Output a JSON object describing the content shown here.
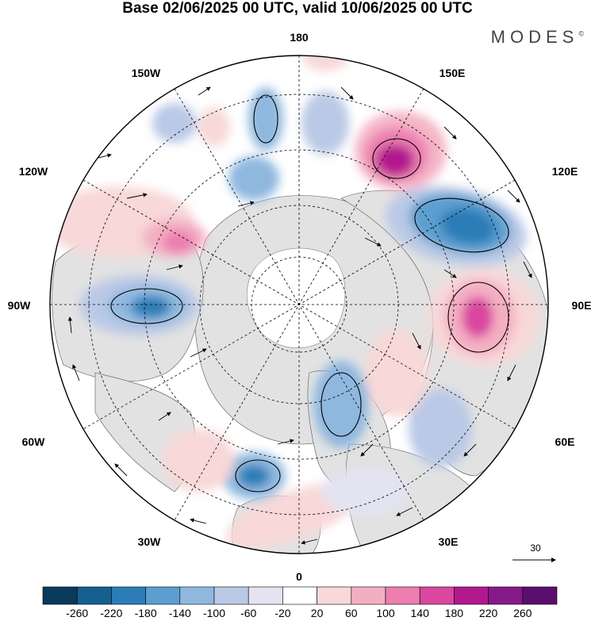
{
  "header": {
    "title": "Base 02/06/2025 00 UTC, valid 10/06/2025 00 UTC",
    "brand": "MODES",
    "brand_mark": "©"
  },
  "map": {
    "projection": "north-polar-stereographic",
    "longitude_labels": {
      "top": "180",
      "bottom": "0",
      "left": "90W",
      "right": "90E",
      "top_left": "150W",
      "top_right": "150E",
      "upper_left": "120W",
      "upper_right": "120E",
      "lower_left": "60W",
      "lower_right": "60E",
      "bottom_left": "30W",
      "bottom_right": "30E"
    },
    "vector_reference_label": "30",
    "anomaly_centers": [
      {
        "sign": "positive",
        "region": "150E-120E",
        "strength": 220
      },
      {
        "sign": "negative",
        "region": "120E-90E",
        "strength": -180
      },
      {
        "sign": "positive",
        "region": "90E",
        "strength": 180
      },
      {
        "sign": "negative",
        "region": "90W",
        "strength": -180
      },
      {
        "sign": "positive",
        "region": "120W",
        "strength": 100
      },
      {
        "sign": "negative",
        "region": "30W",
        "strength": -140
      },
      {
        "sign": "negative",
        "region": "60E-30E",
        "strength": -100
      },
      {
        "sign": "negative",
        "region": "150W",
        "strength": -100
      }
    ]
  },
  "colorbar": {
    "ticks": [
      "-260",
      "-220",
      "-180",
      "-140",
      "-100",
      "-60",
      "-20",
      "20",
      "60",
      "100",
      "140",
      "180",
      "220",
      "260"
    ],
    "colors": [
      "#0a3a5c",
      "#16608f",
      "#2c7db7",
      "#5b9fd0",
      "#8fb8df",
      "#bac9e6",
      "#e3e3f2",
      "#ffffff",
      "#f8d8d8",
      "#f4aec2",
      "#ec7fb0",
      "#d9479f",
      "#b3198e",
      "#861a8a",
      "#5b0e6e"
    ]
  }
}
